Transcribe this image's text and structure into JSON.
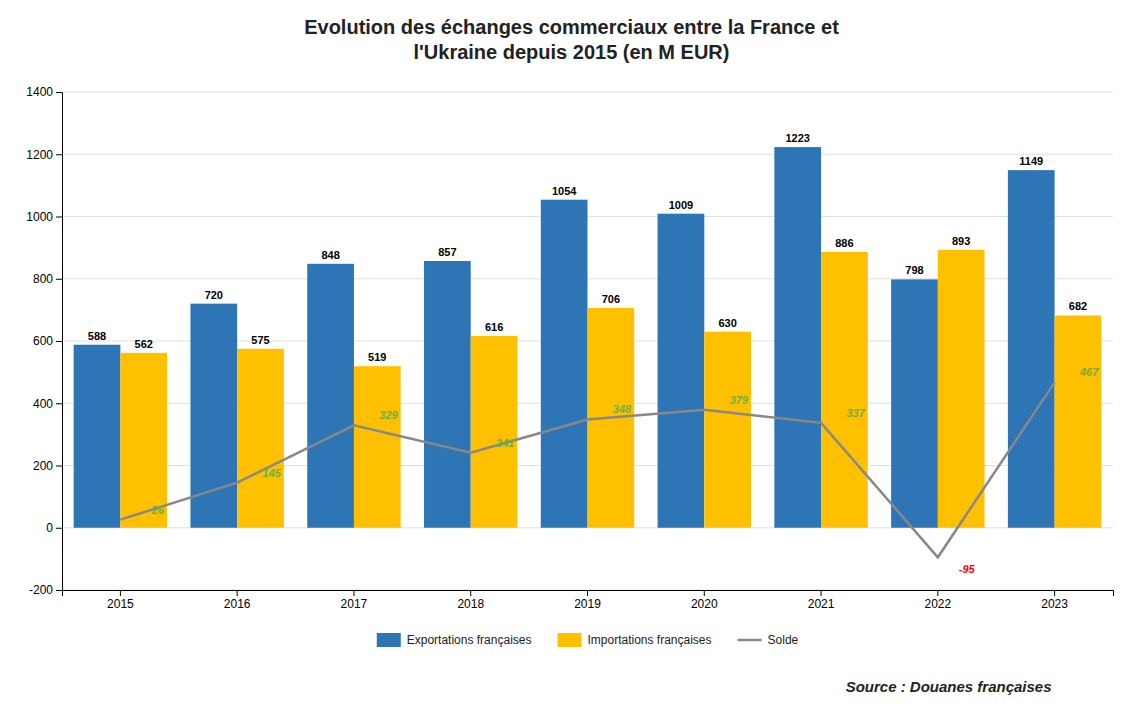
{
  "chart_data": {
    "type": "bar",
    "title": "Evolution des échanges commerciaux entre la France et\nl'Ukraine depuis 2015 (en M EUR)",
    "categories": [
      "2015",
      "2016",
      "2017",
      "2018",
      "2019",
      "2020",
      "2021",
      "2022",
      "2023"
    ],
    "series": [
      {
        "name": "Exportations françaises",
        "type": "bar",
        "color": "#2E75B6",
        "values": [
          588,
          720,
          848,
          857,
          1054,
          1009,
          1223,
          798,
          1149
        ]
      },
      {
        "name": "Importations françaises",
        "type": "bar",
        "color": "#FFC000",
        "values": [
          562,
          575,
          519,
          616,
          706,
          630,
          886,
          893,
          682
        ]
      },
      {
        "name": "Solde",
        "type": "line",
        "color": "#888888",
        "colors": [
          "#70AD47",
          "#70AD47",
          "#70AD47",
          "#70AD47",
          "#70AD47",
          "#70AD47",
          "#70AD47",
          "#FF0000",
          "#70AD47"
        ],
        "values": [
          26,
          145,
          329,
          241,
          348,
          379,
          337,
          -95,
          467
        ]
      }
    ],
    "ylim": [
      -200,
      1400
    ],
    "yticks": [
      -200,
      0,
      200,
      400,
      600,
      800,
      1000,
      1200,
      1400
    ],
    "grid": true,
    "legend": "bottom",
    "data_labels": true,
    "annotations": [
      "Source : Douanes françaises"
    ]
  }
}
